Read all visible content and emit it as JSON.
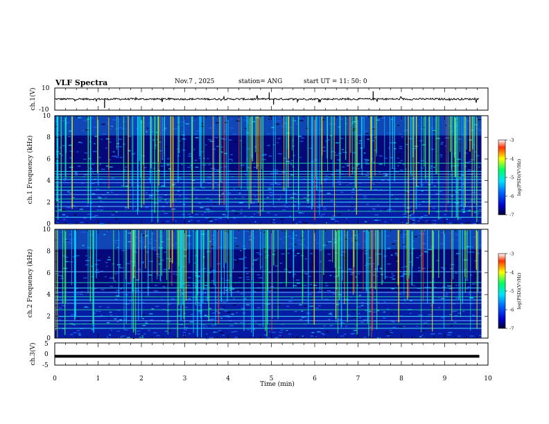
{
  "header": {
    "title": "VLF Spectra",
    "date": "Nov.7 , 2025",
    "station": "station= ANG",
    "start": "start UT = 11: 50: 0"
  },
  "chart_data": [
    {
      "type": "line",
      "panel": "ch1-waveform",
      "ylabel": "ch.1(V)",
      "ylim": [
        -10,
        10
      ],
      "y_ticks": [
        "10",
        "-10"
      ],
      "trace": "noise around 0 V with short spikes",
      "baseline_value": 0
    },
    {
      "type": "heatmap",
      "panel": "ch1-spectrogram",
      "ylabel": "ch.1 Frequency (kHz)",
      "ylim": [
        0,
        10
      ],
      "y_ticks": [
        "0",
        "2",
        "4",
        "6",
        "8",
        "10"
      ],
      "xlim": [
        0,
        9.85
      ],
      "horizontal_lines_khz": [
        0.6,
        1.15,
        1.6,
        2.0,
        2.3,
        2.7,
        3.1,
        3.4,
        3.8,
        4.1,
        4.35,
        4.6,
        4.85,
        5.6
      ],
      "colorbar": {
        "label": "log(PSD)(V²/Hz)",
        "range": [
          -7,
          -3
        ],
        "ticks": [
          "-3",
          "-4",
          "-5",
          "-6",
          "-7"
        ]
      }
    },
    {
      "type": "heatmap",
      "panel": "ch2-spectrogram",
      "ylabel": "ch.2 Frequency (kHz)",
      "ylim": [
        0,
        10
      ],
      "y_ticks": [
        "0",
        "2",
        "4",
        "6",
        "8",
        "10"
      ],
      "xlim": [
        0,
        9.85
      ],
      "horizontal_lines_khz": [
        0.9,
        1.3,
        1.6,
        2.0,
        2.6,
        3.2,
        3.5,
        3.8,
        4.2,
        4.6,
        5.1,
        6.1
      ],
      "colorbar": {
        "label": "log(PSD)(V²/Hz)",
        "range": [
          -7,
          -3
        ],
        "ticks": [
          "-3",
          "-4",
          "-5",
          "-6",
          "-7"
        ]
      }
    },
    {
      "type": "line",
      "panel": "ch3-waveform",
      "ylabel": "ch.3(V)",
      "ylim": [
        -5,
        5
      ],
      "y_ticks": [
        "5",
        "0",
        "-5"
      ],
      "trace": "constant",
      "baseline_value": -1
    }
  ],
  "x_axis": {
    "label": "Time (min)",
    "range": [
      0,
      10
    ],
    "ticks": [
      "0",
      "1",
      "2",
      "3",
      "4",
      "5",
      "6",
      "7",
      "8",
      "9",
      "10"
    ]
  }
}
